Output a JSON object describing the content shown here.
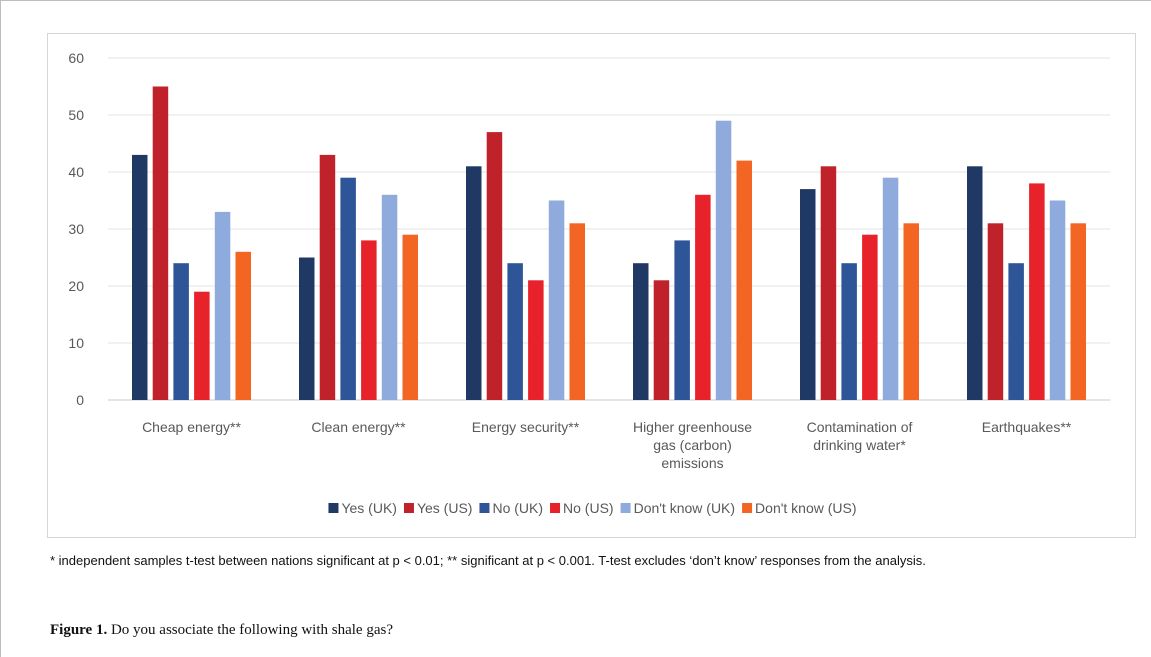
{
  "chart_data": {
    "type": "bar",
    "categories": [
      [
        "Cheap energy**"
      ],
      [
        "Clean energy**"
      ],
      [
        "Energy security**"
      ],
      [
        "Higher greenhouse",
        "gas (carbon)",
        "emissions"
      ],
      [
        "Contamination of",
        "drinking water*"
      ],
      [
        "Earthquakes**"
      ]
    ],
    "series": [
      {
        "name": "Yes (UK)",
        "color": "#1f3864",
        "values": [
          43,
          25,
          41,
          24,
          37,
          41
        ]
      },
      {
        "name": "Yes (US)",
        "color": "#c0222b",
        "values": [
          55,
          43,
          47,
          21,
          41,
          31
        ]
      },
      {
        "name": "No (UK)",
        "color": "#2e5597",
        "values": [
          24,
          39,
          24,
          28,
          24,
          24
        ]
      },
      {
        "name": "No (US)",
        "color": "#e8222a",
        "values": [
          19,
          28,
          21,
          36,
          29,
          38
        ]
      },
      {
        "name": "Don't know (UK)",
        "color": "#8faadc",
        "values": [
          33,
          36,
          35,
          49,
          39,
          35
        ]
      },
      {
        "name": "Don't know (US)",
        "color": "#f26522",
        "values": [
          26,
          29,
          31,
          42,
          31,
          31
        ]
      }
    ],
    "ylim": [
      0,
      60
    ],
    "yticks": [
      0,
      10,
      20,
      30,
      40,
      50,
      60
    ],
    "grid": true,
    "legend": "bottom"
  },
  "footnote": "* independent samples t-test between nations significant at p < 0.01; ** significant at p < 0.001.  T-test excludes ‘don’t know’ responses from the analysis.",
  "caption": {
    "label": "Figure 1.",
    "text": " Do you associate the following with shale gas?"
  }
}
